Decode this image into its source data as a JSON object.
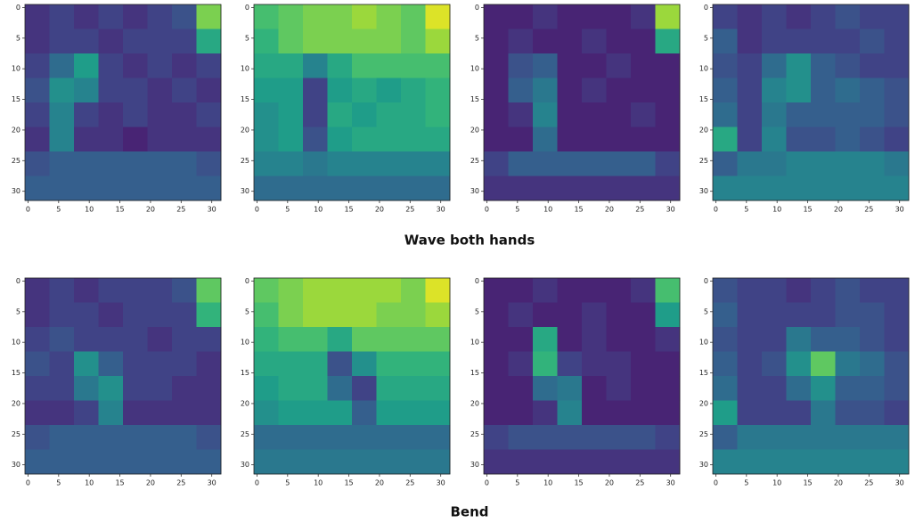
{
  "chart_data": [
    {
      "type": "heatmap",
      "xlim": [
        -0.5,
        31.5
      ],
      "ylim": [
        31.5,
        -0.5
      ],
      "vlim": [
        0,
        1
      ],
      "xticks": [
        0,
        5,
        10,
        15,
        20,
        25,
        30
      ],
      "yticks": [
        0,
        5,
        10,
        15,
        20,
        25,
        30
      ],
      "values": [
        [
          0.15,
          0.2,
          0.15,
          0.2,
          0.15,
          0.2,
          0.25,
          0.8
        ],
        [
          0.15,
          0.2,
          0.2,
          0.15,
          0.2,
          0.2,
          0.2,
          0.6
        ],
        [
          0.2,
          0.35,
          0.55,
          0.2,
          0.15,
          0.2,
          0.15,
          0.2
        ],
        [
          0.25,
          0.5,
          0.45,
          0.2,
          0.2,
          0.15,
          0.2,
          0.15
        ],
        [
          0.2,
          0.45,
          0.2,
          0.15,
          0.2,
          0.15,
          0.15,
          0.2
        ],
        [
          0.15,
          0.45,
          0.15,
          0.15,
          0.1,
          0.15,
          0.15,
          0.15
        ],
        [
          0.25,
          0.3,
          0.3,
          0.3,
          0.3,
          0.3,
          0.3,
          0.25
        ],
        [
          0.3,
          0.3,
          0.3,
          0.3,
          0.3,
          0.3,
          0.3,
          0.3
        ]
      ]
    },
    {
      "type": "heatmap",
      "xlim": [
        -0.5,
        31.5
      ],
      "ylim": [
        31.5,
        -0.5
      ],
      "vlim": [
        0,
        1
      ],
      "xticks": [
        0,
        5,
        10,
        15,
        20,
        25,
        30
      ],
      "yticks": [
        0,
        5,
        10,
        15,
        20,
        25,
        30
      ],
      "values": [
        [
          0.7,
          0.75,
          0.8,
          0.8,
          0.85,
          0.8,
          0.75,
          0.95
        ],
        [
          0.65,
          0.75,
          0.8,
          0.8,
          0.8,
          0.8,
          0.75,
          0.85
        ],
        [
          0.6,
          0.6,
          0.45,
          0.6,
          0.7,
          0.7,
          0.7,
          0.7
        ],
        [
          0.55,
          0.55,
          0.2,
          0.55,
          0.6,
          0.55,
          0.6,
          0.65
        ],
        [
          0.5,
          0.55,
          0.2,
          0.6,
          0.55,
          0.6,
          0.6,
          0.65
        ],
        [
          0.5,
          0.55,
          0.25,
          0.55,
          0.6,
          0.6,
          0.6,
          0.6
        ],
        [
          0.45,
          0.45,
          0.4,
          0.45,
          0.45,
          0.45,
          0.45,
          0.45
        ],
        [
          0.35,
          0.35,
          0.35,
          0.35,
          0.35,
          0.35,
          0.35,
          0.35
        ]
      ]
    },
    {
      "type": "heatmap",
      "xlim": [
        -0.5,
        31.5
      ],
      "ylim": [
        31.5,
        -0.5
      ],
      "vlim": [
        0,
        1
      ],
      "xticks": [
        0,
        5,
        10,
        15,
        20,
        25,
        30
      ],
      "yticks": [
        0,
        5,
        10,
        15,
        20,
        25,
        30
      ],
      "values": [
        [
          0.1,
          0.1,
          0.15,
          0.1,
          0.1,
          0.1,
          0.15,
          0.85
        ],
        [
          0.1,
          0.15,
          0.1,
          0.1,
          0.15,
          0.1,
          0.1,
          0.6
        ],
        [
          0.1,
          0.25,
          0.3,
          0.1,
          0.1,
          0.15,
          0.1,
          0.1
        ],
        [
          0.1,
          0.3,
          0.4,
          0.1,
          0.15,
          0.1,
          0.1,
          0.1
        ],
        [
          0.1,
          0.15,
          0.45,
          0.1,
          0.1,
          0.1,
          0.15,
          0.1
        ],
        [
          0.1,
          0.1,
          0.35,
          0.1,
          0.1,
          0.1,
          0.1,
          0.1
        ],
        [
          0.2,
          0.3,
          0.3,
          0.3,
          0.3,
          0.3,
          0.3,
          0.2
        ],
        [
          0.15,
          0.15,
          0.15,
          0.15,
          0.15,
          0.15,
          0.15,
          0.15
        ]
      ]
    },
    {
      "type": "heatmap",
      "xlim": [
        -0.5,
        31.5
      ],
      "ylim": [
        31.5,
        -0.5
      ],
      "vlim": [
        0,
        1
      ],
      "xticks": [
        0,
        5,
        10,
        15,
        20,
        25,
        30
      ],
      "yticks": [
        0,
        5,
        10,
        15,
        20,
        25,
        30
      ],
      "values": [
        [
          0.2,
          0.15,
          0.2,
          0.15,
          0.2,
          0.25,
          0.2,
          0.2
        ],
        [
          0.3,
          0.15,
          0.2,
          0.2,
          0.2,
          0.2,
          0.25,
          0.2
        ],
        [
          0.25,
          0.2,
          0.35,
          0.5,
          0.3,
          0.25,
          0.2,
          0.2
        ],
        [
          0.3,
          0.2,
          0.45,
          0.5,
          0.3,
          0.35,
          0.3,
          0.25
        ],
        [
          0.35,
          0.2,
          0.4,
          0.3,
          0.3,
          0.3,
          0.3,
          0.25
        ],
        [
          0.6,
          0.2,
          0.45,
          0.25,
          0.25,
          0.3,
          0.25,
          0.2
        ],
        [
          0.3,
          0.4,
          0.4,
          0.45,
          0.45,
          0.45,
          0.45,
          0.4
        ],
        [
          0.45,
          0.45,
          0.45,
          0.45,
          0.45,
          0.45,
          0.45,
          0.45
        ]
      ]
    },
    {
      "type": "heatmap",
      "xlim": [
        -0.5,
        31.5
      ],
      "ylim": [
        31.5,
        -0.5
      ],
      "vlim": [
        0,
        1
      ],
      "xticks": [
        0,
        5,
        10,
        15,
        20,
        25,
        30
      ],
      "yticks": [
        0,
        5,
        10,
        15,
        20,
        25,
        30
      ],
      "values": [
        [
          0.15,
          0.2,
          0.15,
          0.2,
          0.2,
          0.2,
          0.25,
          0.75
        ],
        [
          0.15,
          0.2,
          0.2,
          0.15,
          0.2,
          0.2,
          0.2,
          0.65
        ],
        [
          0.2,
          0.25,
          0.2,
          0.2,
          0.2,
          0.15,
          0.2,
          0.2
        ],
        [
          0.25,
          0.2,
          0.5,
          0.3,
          0.2,
          0.2,
          0.2,
          0.15
        ],
        [
          0.2,
          0.2,
          0.4,
          0.5,
          0.2,
          0.2,
          0.15,
          0.15
        ],
        [
          0.15,
          0.15,
          0.2,
          0.45,
          0.15,
          0.15,
          0.15,
          0.15
        ],
        [
          0.25,
          0.3,
          0.3,
          0.3,
          0.3,
          0.3,
          0.3,
          0.25
        ],
        [
          0.3,
          0.3,
          0.3,
          0.3,
          0.3,
          0.3,
          0.3,
          0.3
        ]
      ]
    },
    {
      "type": "heatmap",
      "xlim": [
        -0.5,
        31.5
      ],
      "ylim": [
        31.5,
        -0.5
      ],
      "vlim": [
        0,
        1
      ],
      "xticks": [
        0,
        5,
        10,
        15,
        20,
        25,
        30
      ],
      "yticks": [
        0,
        5,
        10,
        15,
        20,
        25,
        30
      ],
      "values": [
        [
          0.75,
          0.8,
          0.85,
          0.85,
          0.85,
          0.85,
          0.8,
          0.95
        ],
        [
          0.7,
          0.8,
          0.85,
          0.85,
          0.85,
          0.8,
          0.8,
          0.85
        ],
        [
          0.65,
          0.7,
          0.7,
          0.6,
          0.75,
          0.75,
          0.75,
          0.75
        ],
        [
          0.6,
          0.6,
          0.6,
          0.25,
          0.5,
          0.65,
          0.65,
          0.65
        ],
        [
          0.55,
          0.6,
          0.6,
          0.35,
          0.2,
          0.6,
          0.6,
          0.6
        ],
        [
          0.5,
          0.55,
          0.55,
          0.55,
          0.3,
          0.55,
          0.55,
          0.55
        ],
        [
          0.35,
          0.35,
          0.35,
          0.35,
          0.35,
          0.35,
          0.35,
          0.35
        ],
        [
          0.4,
          0.4,
          0.4,
          0.4,
          0.4,
          0.4,
          0.4,
          0.4
        ]
      ]
    },
    {
      "type": "heatmap",
      "xlim": [
        -0.5,
        31.5
      ],
      "ylim": [
        31.5,
        -0.5
      ],
      "vlim": [
        0,
        1
      ],
      "xticks": [
        0,
        5,
        10,
        15,
        20,
        25,
        30
      ],
      "yticks": [
        0,
        5,
        10,
        15,
        20,
        25,
        30
      ],
      "values": [
        [
          0.1,
          0.1,
          0.15,
          0.1,
          0.1,
          0.1,
          0.15,
          0.7
        ],
        [
          0.1,
          0.15,
          0.1,
          0.1,
          0.15,
          0.1,
          0.1,
          0.55
        ],
        [
          0.1,
          0.1,
          0.6,
          0.1,
          0.15,
          0.1,
          0.1,
          0.15
        ],
        [
          0.1,
          0.15,
          0.65,
          0.2,
          0.15,
          0.15,
          0.1,
          0.1
        ],
        [
          0.1,
          0.1,
          0.35,
          0.4,
          0.1,
          0.15,
          0.1,
          0.1
        ],
        [
          0.1,
          0.1,
          0.15,
          0.45,
          0.1,
          0.1,
          0.1,
          0.1
        ],
        [
          0.2,
          0.25,
          0.25,
          0.25,
          0.25,
          0.25,
          0.25,
          0.2
        ],
        [
          0.15,
          0.15,
          0.15,
          0.15,
          0.15,
          0.15,
          0.15,
          0.15
        ]
      ]
    },
    {
      "type": "heatmap",
      "xlim": [
        -0.5,
        31.5
      ],
      "ylim": [
        31.5,
        -0.5
      ],
      "vlim": [
        0,
        1
      ],
      "xticks": [
        0,
        5,
        10,
        15,
        20,
        25,
        30
      ],
      "yticks": [
        0,
        5,
        10,
        15,
        20,
        25,
        30
      ],
      "values": [
        [
          0.25,
          0.2,
          0.2,
          0.15,
          0.2,
          0.25,
          0.2,
          0.2
        ],
        [
          0.3,
          0.2,
          0.2,
          0.2,
          0.2,
          0.25,
          0.25,
          0.2
        ],
        [
          0.25,
          0.2,
          0.2,
          0.4,
          0.3,
          0.3,
          0.25,
          0.2
        ],
        [
          0.3,
          0.2,
          0.25,
          0.5,
          0.75,
          0.4,
          0.35,
          0.25
        ],
        [
          0.35,
          0.2,
          0.2,
          0.35,
          0.5,
          0.3,
          0.3,
          0.25
        ],
        [
          0.55,
          0.2,
          0.2,
          0.2,
          0.4,
          0.25,
          0.25,
          0.2
        ],
        [
          0.3,
          0.4,
          0.4,
          0.4,
          0.4,
          0.4,
          0.4,
          0.4
        ],
        [
          0.45,
          0.45,
          0.45,
          0.45,
          0.45,
          0.45,
          0.45,
          0.45
        ]
      ]
    }
  ],
  "captions": [
    "Wave both hands",
    "Bend"
  ]
}
